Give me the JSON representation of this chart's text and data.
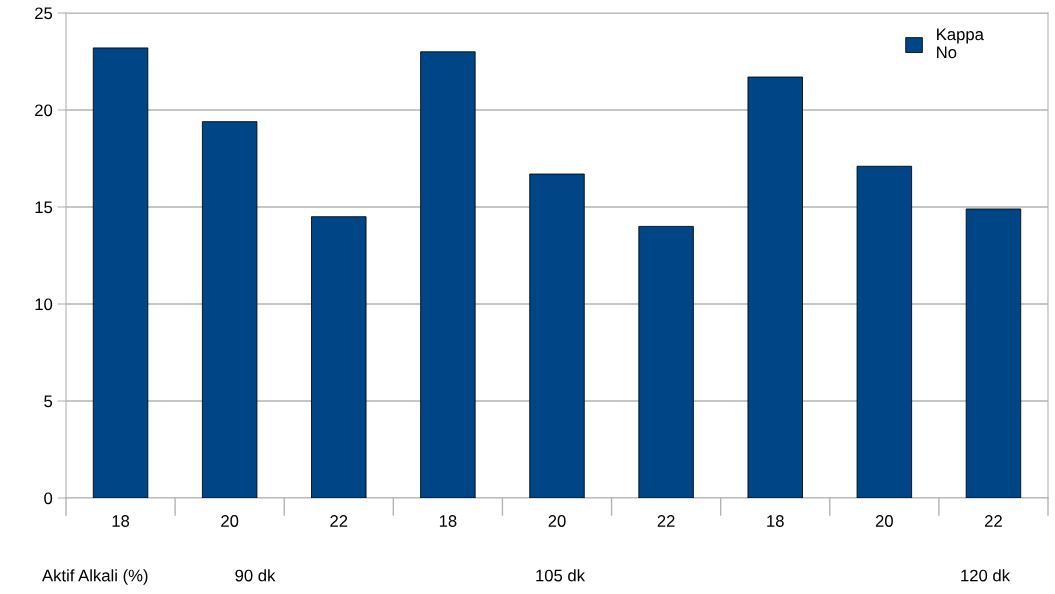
{
  "chart_data": {
    "type": "bar",
    "xlabel": "Aktif Alkali (%)",
    "categories": [
      "18",
      "20",
      "22",
      "18",
      "20",
      "22",
      "18",
      "20",
      "22"
    ],
    "series": [
      {
        "name": "Kappa No",
        "color": "#004586",
        "values": [
          23.2,
          19.4,
          14.5,
          23.0,
          16.7,
          14.0,
          21.7,
          17.1,
          14.9
        ]
      }
    ],
    "ylim": [
      0,
      25
    ],
    "yticks": [
      0,
      5,
      10,
      15,
      20,
      25
    ],
    "grid": "y",
    "legend": "top right",
    "annotations": [
      "90 dk",
      "105 dk",
      "120 dk"
    ]
  }
}
